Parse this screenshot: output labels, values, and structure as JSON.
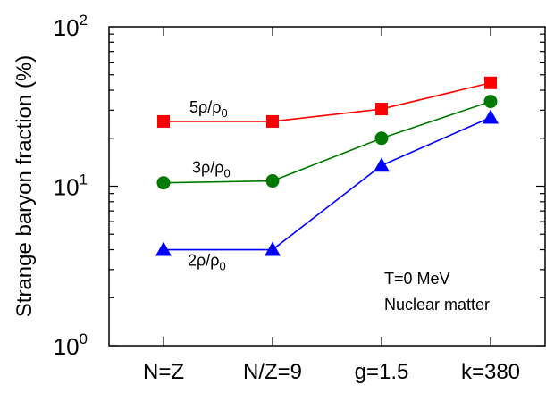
{
  "chart_data": {
    "type": "line",
    "categories": [
      "N=Z",
      "N/Z=9",
      "g=1.5",
      "k=380"
    ],
    "ylabel": "Strange baryon fraction (%)",
    "yscale": "log",
    "ylim": [
      1,
      100
    ],
    "y_ticks": [
      {
        "value": 1,
        "base": "10",
        "exp": "0"
      },
      {
        "value": 10,
        "base": "10",
        "exp": "1"
      },
      {
        "value": 100,
        "base": "10",
        "exp": "2"
      }
    ],
    "grid": false,
    "series": [
      {
        "label_main": "5ρ/ρ",
        "label_sub": "0",
        "color": "#ff0000",
        "marker": "square",
        "values": [
          25.5,
          25.5,
          30.5,
          44.5
        ]
      },
      {
        "label_main": "3ρ/ρ",
        "label_sub": "0",
        "color": "#007a00",
        "marker": "circle",
        "values": [
          10.5,
          10.8,
          20.0,
          34.0
        ]
      },
      {
        "label_main": "2ρ/ρ",
        "label_sub": "0",
        "color": "#0000ff",
        "marker": "triangle",
        "values": [
          4.0,
          4.0,
          13.5,
          27.0
        ]
      }
    ],
    "annotations": [
      "T=0 MeV",
      "Nuclear matter"
    ]
  }
}
